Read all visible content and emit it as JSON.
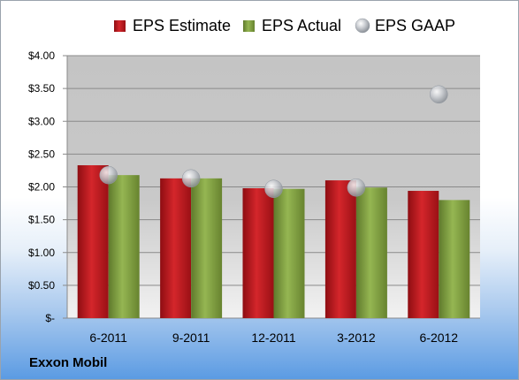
{
  "company": "Exxon Mobil",
  "chart_data": {
    "type": "bar",
    "categories": [
      "6-2011",
      "9-2011",
      "12-2011",
      "3-2012",
      "6-2012"
    ],
    "series": [
      {
        "name": "EPS Estimate",
        "kind": "bar",
        "color": "#c0161c",
        "values": [
          2.33,
          2.13,
          1.98,
          2.1,
          1.94
        ]
      },
      {
        "name": "EPS Actual",
        "kind": "bar",
        "color": "#7e9c3c",
        "values": [
          2.18,
          2.13,
          1.97,
          1.99,
          1.8
        ]
      },
      {
        "name": "EPS GAAP",
        "kind": "marker",
        "color": "#b8bcc2",
        "values": [
          2.18,
          2.13,
          1.97,
          1.99,
          3.41
        ]
      }
    ],
    "yticks": [
      "$-",
      "$0.50",
      "$1.00",
      "$1.50",
      "$2.00",
      "$2.50",
      "$3.00",
      "$3.50",
      "$4.00"
    ],
    "ylim": [
      0,
      4
    ],
    "grid": true,
    "legend": "top"
  }
}
